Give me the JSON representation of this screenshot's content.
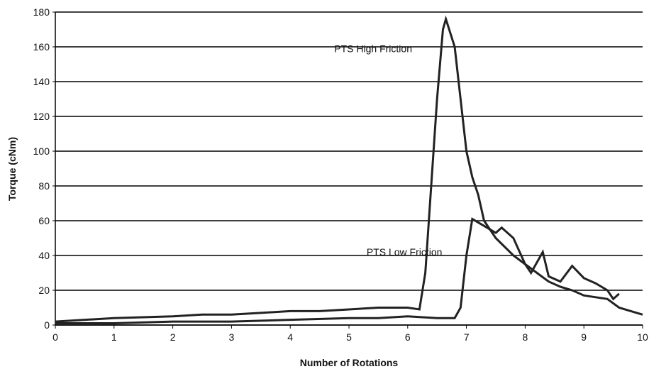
{
  "chart_data": {
    "type": "line",
    "x_label": "Number of Rotations",
    "y_label": "Torque (cNm)",
    "xlim": [
      0,
      10
    ],
    "xticks": [
      0,
      1,
      2,
      3,
      4,
      5,
      6,
      7,
      8,
      9,
      10
    ],
    "ylim": [
      0,
      180
    ],
    "yticks": [
      0,
      20,
      40,
      60,
      80,
      100,
      120,
      140,
      160,
      180
    ],
    "grid": true,
    "series": [
      {
        "name": "PTS High Friction",
        "color": "#222222",
        "x": [
          0,
          1,
          2,
          2.5,
          3,
          3.5,
          4,
          4.5,
          5,
          5.5,
          6,
          6.2,
          6.3,
          6.4,
          6.5,
          6.6,
          6.65,
          6.8,
          6.9,
          7.0,
          7.1,
          7.2,
          7.3,
          7.5,
          7.8,
          8.0,
          8.2,
          8.4,
          8.6,
          8.8,
          9.0,
          9.2,
          9.4,
          9.6,
          9.8,
          10.0
        ],
        "values": [
          2,
          4,
          5,
          6,
          6,
          7,
          8,
          8,
          9,
          10,
          10,
          9,
          30,
          80,
          130,
          170,
          176,
          160,
          130,
          100,
          85,
          75,
          60,
          50,
          40,
          35,
          30,
          25,
          22,
          20,
          17,
          16,
          15,
          10,
          8,
          6
        ]
      },
      {
        "name": "PTS Low Friction",
        "color": "#222222",
        "x": [
          0,
          1,
          2,
          3,
          4,
          5,
          5.5,
          6,
          6.5,
          6.8,
          6.9,
          7.0,
          7.1,
          7.3,
          7.5,
          7.6,
          7.8,
          8.0,
          8.1,
          8.3,
          8.4,
          8.6,
          8.8,
          9.0,
          9.2,
          9.4,
          9.5,
          9.6
        ],
        "values": [
          1,
          1,
          2,
          2,
          3,
          4,
          4,
          5,
          4,
          4,
          10,
          40,
          61,
          57,
          53,
          56,
          50,
          35,
          30,
          42,
          28,
          25,
          34,
          27,
          24,
          20,
          15,
          18
        ]
      }
    ]
  }
}
